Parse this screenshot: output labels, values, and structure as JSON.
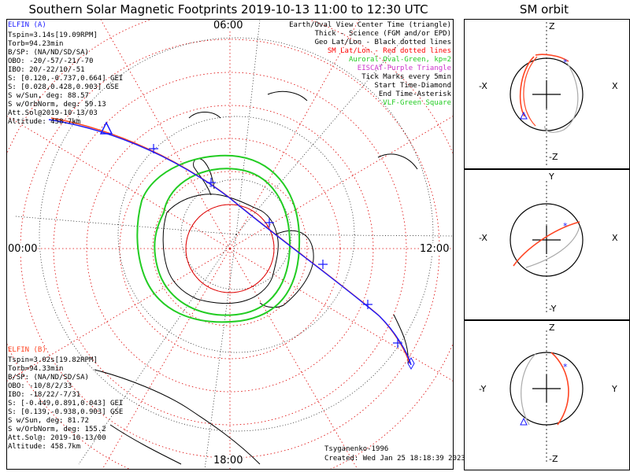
{
  "title": "Southern Solar Magnetic Footprints 2019-10-13 11:00 to 12:30 UTC",
  "orbit_title": "SM orbit",
  "clock_labels": {
    "top": "06:00",
    "left": "00:00",
    "right": "12:00",
    "bottom": "18:00"
  },
  "elfin_a": {
    "name": "ELFIN (A)",
    "color": "#1a1aff",
    "lines": [
      "Tspin=3.14s[19.09RPM]",
      "Torb=94.23min",
      "B/SP: (NA/ND/SD/SA)",
      "OBO: -20/-57/-21/-70",
      "IBO: 20/-22/10/-51",
      "S: [0.120,-0.737,0.664] GEI",
      "S: [0.028,0.428,0.903] GSE",
      "S w/Sun, deg: 88.57",
      "S w/OrbNorm, deg: 59.13",
      "Att.Sol@2019-10-13/03",
      "Altitude: 458.7km"
    ]
  },
  "elfin_b": {
    "name": "ELFIN (B)",
    "color": "#ff4422",
    "lines": [
      "Tspin=3.02s[19.82RPM]",
      "Torb=94.33min",
      "B/SP: (NA/ND/SD/SA)",
      "OBO: -10/8/2/33",
      "IBO: -18/22/-7/31",
      "S: [-0.449,0.891,0.043] GEI",
      "S: [0.139,-0.938,0.903] GSE",
      "S w/Sun, deg: 81.72",
      "S w/OrbNorm, deg: 155.2",
      "Att.Sol@: 2019-10-13/00",
      "Altitude: 458.7km"
    ]
  },
  "legend": [
    {
      "text": "Earth/Oval View Center Time (triangle)",
      "color": "#000000"
    },
    {
      "text": "Thick - Science (FGM and/or EPD)",
      "color": "#000000"
    },
    {
      "text": "Geo Lat/Lon - Black dotted lines",
      "color": "#000000"
    },
    {
      "text": "SM Lat/Lon - Red dotted lines",
      "color": "#ff0000"
    },
    {
      "text": "Auroral Oval-Green, kp=2",
      "color": "#22cc22"
    },
    {
      "text": "EISCAT-Purple Triangle",
      "color": "#cc33cc"
    },
    {
      "text": "Tick Marks every 5min",
      "color": "#000000"
    },
    {
      "text": "Start Time-Diamond",
      "color": "#000000"
    },
    {
      "text": "End Time-Asterisk",
      "color": "#000000"
    },
    {
      "text": "VLF-Green Square",
      "color": "#22cc22"
    }
  ],
  "model": "Tsyganenko-1996",
  "created": "Created: Wed Jan 25 18:18:39 2023",
  "panels": [
    {
      "top": "Z",
      "bottom": "-Z",
      "left": "-X",
      "right": "X"
    },
    {
      "top": "Y",
      "bottom": "-Y",
      "left": "-X",
      "right": "X"
    },
    {
      "top": "Z",
      "bottom": "-Z",
      "left": "-Y",
      "right": "Y"
    }
  ],
  "colors": {
    "grid_red": "#dd0000",
    "oval_green": "#22cc22",
    "track_blue": "#1a1aff",
    "track_red": "#ff4422",
    "orbit_gray": "#aaaaaa"
  }
}
